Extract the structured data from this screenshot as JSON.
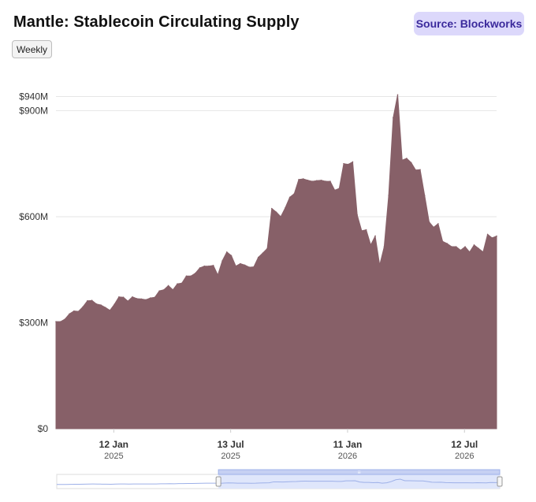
{
  "title": "Mantle: Stablecoin Circulating Supply",
  "source": "Source: Blockworks",
  "range_button": "Weekly",
  "watermark": "Blockworks",
  "colors": {
    "area_fill": "#876068",
    "area_line": "#876068",
    "grid": "#e6e6e6",
    "badge_bg": "#dcd8fb",
    "badge_text": "#3b2a9c",
    "navigator_fill": "#dfe6fb",
    "navigator_border": "#9db0e8"
  },
  "chart_data": {
    "type": "area",
    "title": "Mantle: Stablecoin Circulating Supply",
    "xlabel": "",
    "ylabel": "",
    "x_start": "2024-10-14",
    "x_step_days": 7,
    "ylim": [
      0,
      950
    ],
    "y_tick_labels": [
      {
        "value": 0,
        "label": "$0"
      },
      {
        "value": 300,
        "label": "$300M"
      },
      {
        "value": 600,
        "label": "$600M"
      },
      {
        "value": 900,
        "label": "$900M"
      },
      {
        "value": 940,
        "label": "$940M"
      }
    ],
    "x_tick_labels": [
      {
        "date": "2025-01-12",
        "label": "12 Jan",
        "sublabel": "2025"
      },
      {
        "date": "2025-07-13",
        "label": "13 Jul",
        "sublabel": "2025"
      },
      {
        "date": "2026-01-11",
        "label": "11 Jan",
        "sublabel": "2026"
      },
      {
        "date": "2026-07-12",
        "label": "12 Jul",
        "sublabel": "2026"
      }
    ],
    "grid": true,
    "legend": "none",
    "series": [
      {
        "values": [
          303,
          303,
          310,
          325,
          333,
          332,
          345,
          362,
          363,
          353,
          350,
          343,
          335,
          352,
          373,
          372,
          361,
          373,
          368,
          367,
          365,
          370,
          372,
          390,
          393,
          405,
          393,
          410,
          412,
          432,
          432,
          440,
          455,
          460,
          460,
          462,
          435,
          475,
          500,
          490,
          460,
          467,
          463,
          457,
          458,
          485,
          497,
          510,
          623,
          613,
          600,
          625,
          655,
          665,
          705,
          707,
          703,
          700,
          702,
          703,
          700,
          700,
          675,
          680,
          750,
          748,
          755,
          605,
          560,
          563,
          520,
          545,
          463,
          515,
          660,
          880,
          945,
          760,
          765,
          753,
          732,
          733,
          660,
          585,
          570,
          580,
          530,
          524,
          515,
          515,
          505,
          515,
          500,
          520,
          510,
          500,
          550,
          540,
          545
        ]
      }
    ]
  },
  "navigator": {
    "selection_start_fraction": 0.365,
    "selection_end_fraction": 1.0,
    "handle_glyph": "≡"
  }
}
